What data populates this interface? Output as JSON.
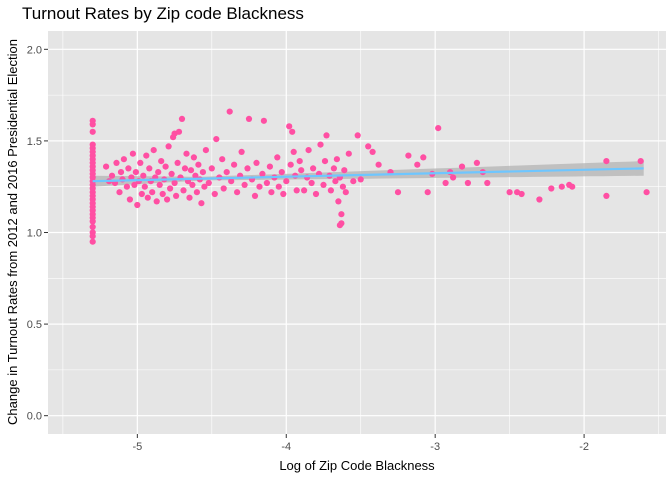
{
  "chart_data": {
    "type": "scatter",
    "title": "Turnout Rates by Zip code Blackness",
    "xlabel": "Log of Zip Code Blackness",
    "ylabel": "Change in Turnout Rates from 2012 and 2016 Presidential Election",
    "xlim": [
      -5.6,
      -1.45
    ],
    "ylim": [
      -0.1,
      2.1
    ],
    "x_ticks": [
      -5,
      -4,
      -3,
      -2
    ],
    "x_tick_labels": [
      "-5",
      "-4",
      "-3",
      "-2"
    ],
    "y_ticks": [
      0.0,
      0.5,
      1.0,
      1.5,
      2.0
    ],
    "y_tick_labels": [
      "0.0",
      "0.5",
      "1.0",
      "1.5",
      "2.0"
    ],
    "grid": true,
    "legend": "none",
    "colors": {
      "points": "#ff4fa3",
      "trend_line": "#6ec6ff",
      "confidence_band": "#b3b3b3",
      "panel_background": "#e5e5e5",
      "grid": "#ffffff",
      "axis_text": "#4d4d4d"
    },
    "series": [
      {
        "values": [
          [
            -5.3,
            1.61
          ],
          [
            -5.3,
            1.59
          ],
          [
            -5.3,
            1.55
          ],
          [
            -5.3,
            1.48
          ],
          [
            -5.3,
            1.46
          ],
          [
            -5.3,
            1.44
          ],
          [
            -5.3,
            1.42
          ],
          [
            -5.3,
            1.4
          ],
          [
            -5.3,
            1.38
          ],
          [
            -5.3,
            1.36
          ],
          [
            -5.3,
            1.34
          ],
          [
            -5.3,
            1.32
          ],
          [
            -5.3,
            1.3
          ],
          [
            -5.3,
            1.28
          ],
          [
            -5.3,
            1.26
          ],
          [
            -5.3,
            1.24
          ],
          [
            -5.3,
            1.22
          ],
          [
            -5.3,
            1.2
          ],
          [
            -5.3,
            1.18
          ],
          [
            -5.3,
            1.16
          ],
          [
            -5.3,
            1.14
          ],
          [
            -5.3,
            1.12
          ],
          [
            -5.3,
            1.1
          ],
          [
            -5.3,
            1.08
          ],
          [
            -5.3,
            1.06
          ],
          [
            -5.3,
            1.03
          ],
          [
            -5.3,
            1.0
          ],
          [
            -5.3,
            0.98
          ],
          [
            -5.3,
            0.95
          ],
          [
            -5.21,
            1.36
          ],
          [
            -5.19,
            1.28
          ],
          [
            -5.17,
            1.31
          ],
          [
            -5.15,
            1.27
          ],
          [
            -5.14,
            1.38
          ],
          [
            -5.12,
            1.22
          ],
          [
            -5.11,
            1.33
          ],
          [
            -5.1,
            1.29
          ],
          [
            -5.09,
            1.4
          ],
          [
            -5.07,
            1.25
          ],
          [
            -5.06,
            1.35
          ],
          [
            -5.05,
            1.18
          ],
          [
            -5.04,
            1.3
          ],
          [
            -5.03,
            1.43
          ],
          [
            -5.02,
            1.26
          ],
          [
            -5.01,
            1.33
          ],
          [
            -5.0,
            1.15
          ],
          [
            -4.99,
            1.28
          ],
          [
            -4.98,
            1.38
          ],
          [
            -4.97,
            1.21
          ],
          [
            -4.96,
            1.31
          ],
          [
            -4.95,
            1.25
          ],
          [
            -4.94,
            1.42
          ],
          [
            -4.93,
            1.19
          ],
          [
            -4.92,
            1.35
          ],
          [
            -4.91,
            1.28
          ],
          [
            -4.9,
            1.22
          ],
          [
            -4.89,
            1.45
          ],
          [
            -4.88,
            1.3
          ],
          [
            -4.87,
            1.17
          ],
          [
            -4.86,
            1.33
          ],
          [
            -4.85,
            1.26
          ],
          [
            -4.84,
            1.39
          ],
          [
            -4.83,
            1.21
          ],
          [
            -4.82,
            1.29
          ],
          [
            -4.81,
            1.36
          ],
          [
            -4.8,
            1.18
          ],
          [
            -4.79,
            1.47
          ],
          [
            -4.78,
            1.24
          ],
          [
            -4.77,
            1.32
          ],
          [
            -4.76,
            1.52
          ],
          [
            -4.75,
            1.27
          ],
          [
            -4.75,
            1.54
          ],
          [
            -4.74,
            1.2
          ],
          [
            -4.73,
            1.38
          ],
          [
            -4.72,
            1.55
          ],
          [
            -4.71,
            1.3
          ],
          [
            -4.7,
            1.62
          ],
          [
            -4.69,
            1.23
          ],
          [
            -4.68,
            1.35
          ],
          [
            -4.67,
            1.43
          ],
          [
            -4.66,
            1.28
          ],
          [
            -4.65,
            1.19
          ],
          [
            -4.64,
            1.34
          ],
          [
            -4.63,
            1.26
          ],
          [
            -4.62,
            1.41
          ],
          [
            -4.61,
            1.31
          ],
          [
            -4.6,
            1.22
          ],
          [
            -4.59,
            1.37
          ],
          [
            -4.58,
            1.29
          ],
          [
            -4.57,
            1.16
          ],
          [
            -4.56,
            1.33
          ],
          [
            -4.55,
            1.25
          ],
          [
            -4.54,
            1.45
          ],
          [
            -4.52,
            1.27
          ],
          [
            -4.5,
            1.35
          ],
          [
            -4.48,
            1.21
          ],
          [
            -4.47,
            1.51
          ],
          [
            -4.45,
            1.3
          ],
          [
            -4.43,
            1.4
          ],
          [
            -4.42,
            1.24
          ],
          [
            -4.4,
            1.33
          ],
          [
            -4.38,
            1.66
          ],
          [
            -4.37,
            1.28
          ],
          [
            -4.35,
            1.37
          ],
          [
            -4.33,
            1.22
          ],
          [
            -4.31,
            1.31
          ],
          [
            -4.3,
            1.44
          ],
          [
            -4.28,
            1.26
          ],
          [
            -4.26,
            1.35
          ],
          [
            -4.25,
            1.62
          ],
          [
            -4.23,
            1.29
          ],
          [
            -4.21,
            1.2
          ],
          [
            -4.2,
            1.38
          ],
          [
            -4.18,
            1.25
          ],
          [
            -4.16,
            1.32
          ],
          [
            -4.15,
            1.61
          ],
          [
            -4.13,
            1.27
          ],
          [
            -4.11,
            1.36
          ],
          [
            -4.1,
            1.22
          ],
          [
            -4.08,
            1.3
          ],
          [
            -4.06,
            1.41
          ],
          [
            -4.05,
            1.25
          ],
          [
            -4.03,
            1.33
          ],
          [
            -4.02,
            1.21
          ],
          [
            -4.0,
            1.28
          ],
          [
            -3.98,
            1.58
          ],
          [
            -3.97,
            1.37
          ],
          [
            -3.96,
            1.55
          ],
          [
            -3.95,
            1.44
          ],
          [
            -3.94,
            1.31
          ],
          [
            -3.93,
            1.23
          ],
          [
            -3.91,
            1.39
          ],
          [
            -3.9,
            1.34
          ],
          [
            -3.88,
            1.23
          ],
          [
            -3.86,
            1.3
          ],
          [
            -3.85,
            1.45
          ],
          [
            -3.83,
            1.27
          ],
          [
            -3.82,
            1.35
          ],
          [
            -3.8,
            1.21
          ],
          [
            -3.78,
            1.32
          ],
          [
            -3.77,
            1.48
          ],
          [
            -3.75,
            1.26
          ],
          [
            -3.74,
            1.39
          ],
          [
            -3.73,
            1.53
          ],
          [
            -3.71,
            1.31
          ],
          [
            -3.7,
            1.23
          ],
          [
            -3.68,
            1.35
          ],
          [
            -3.67,
            1.28
          ],
          [
            -3.66,
            1.4
          ],
          [
            -3.65,
            1.17
          ],
          [
            -3.64,
            1.3
          ],
          [
            -3.63,
            1.1
          ],
          [
            -3.63,
            1.05
          ],
          [
            -3.64,
            1.04
          ],
          [
            -3.62,
            1.25
          ],
          [
            -3.61,
            1.34
          ],
          [
            -3.6,
            1.22
          ],
          [
            -3.58,
            1.43
          ],
          [
            -3.55,
            1.28
          ],
          [
            -3.52,
            1.53
          ],
          [
            -3.5,
            1.29
          ],
          [
            -3.45,
            1.47
          ],
          [
            -3.42,
            1.44
          ],
          [
            -3.38,
            1.37
          ],
          [
            -3.3,
            1.33
          ],
          [
            -3.25,
            1.22
          ],
          [
            -3.18,
            1.42
          ],
          [
            -3.12,
            1.37
          ],
          [
            -3.08,
            1.41
          ],
          [
            -3.05,
            1.22
          ],
          [
            -3.02,
            1.32
          ],
          [
            -2.98,
            1.57
          ],
          [
            -2.93,
            1.27
          ],
          [
            -2.9,
            1.33
          ],
          [
            -2.88,
            1.3
          ],
          [
            -2.82,
            1.36
          ],
          [
            -2.78,
            1.27
          ],
          [
            -2.72,
            1.38
          ],
          [
            -2.68,
            1.33
          ],
          [
            -2.65,
            1.27
          ],
          [
            -2.5,
            1.22
          ],
          [
            -2.45,
            1.22
          ],
          [
            -2.42,
            1.21
          ],
          [
            -2.3,
            1.18
          ],
          [
            -2.22,
            1.24
          ],
          [
            -2.15,
            1.25
          ],
          [
            -2.1,
            1.26
          ],
          [
            -2.08,
            1.25
          ],
          [
            -1.85,
            1.39
          ],
          [
            -1.85,
            1.2
          ],
          [
            -1.62,
            1.39
          ],
          [
            -1.58,
            1.22
          ]
        ]
      }
    ],
    "trend": {
      "type": "linear",
      "x_range": [
        -5.3,
        -1.6
      ],
      "y_at_start": 1.28,
      "y_at_end": 1.35,
      "band_at_start": [
        1.25,
        1.31
      ],
      "band_at_end": [
        1.31,
        1.39
      ]
    }
  }
}
